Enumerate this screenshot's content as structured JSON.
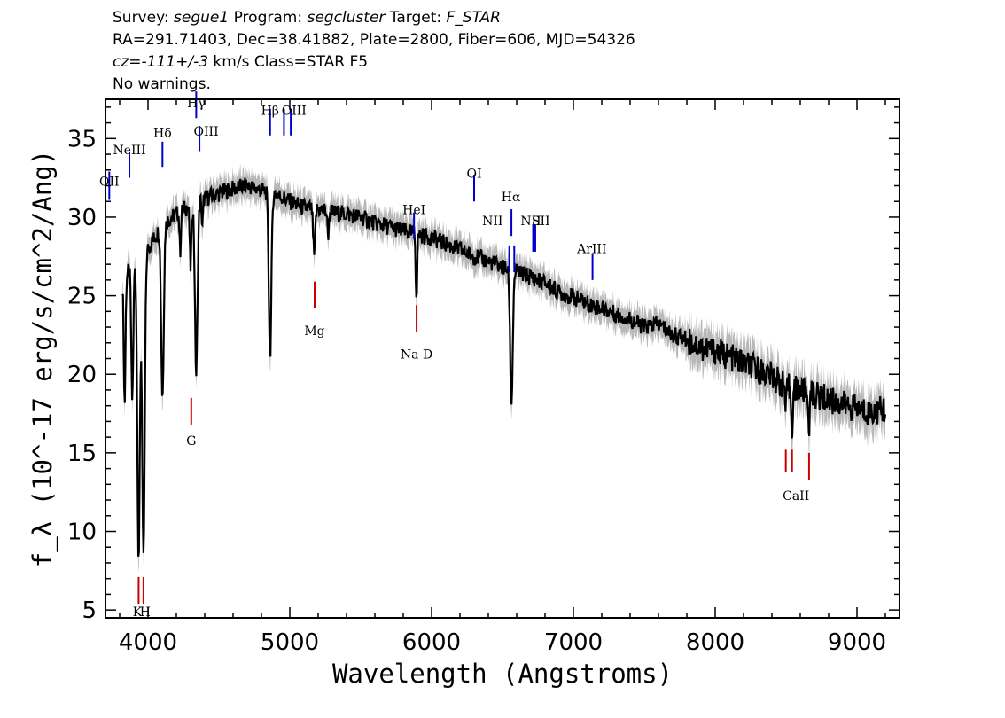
{
  "header": {
    "survey_label": "Survey:",
    "survey_value": "segue1",
    "program_label": "Program:",
    "program_value": "segcluster",
    "target_label": "Target:",
    "target_value": "F_STAR",
    "line2": "RA=291.71403, Dec=38.41882, Plate=2800, Fiber=606, MJD=54326",
    "cz_label": "cz=",
    "cz_value": "-111+/-3",
    "cz_rest": " km/s Class=STAR F5",
    "line4": "No warnings."
  },
  "colors": {
    "spectrum": "#000000",
    "error_band": "#b8b8b8",
    "emission_marker": "#0000cc",
    "absorption_marker": "#cc0000"
  },
  "chart_data": {
    "type": "line",
    "title": "",
    "xlabel": "Wavelength (Angstroms)",
    "ylabel": "f_λ (10^-17 erg/s/cm^2/Ang)",
    "xlim": [
      3700,
      9300
    ],
    "ylim": [
      4.5,
      37.5
    ],
    "xticks": [
      4000,
      5000,
      6000,
      7000,
      8000,
      9000
    ],
    "yticks": [
      5,
      10,
      15,
      20,
      25,
      30,
      35
    ],
    "grid": false,
    "continuum": [
      [
        3820,
        26.0
      ],
      [
        3900,
        27.0
      ],
      [
        4000,
        28.0
      ],
      [
        4100,
        29.5
      ],
      [
        4200,
        30.2
      ],
      [
        4300,
        30.8
      ],
      [
        4400,
        31.2
      ],
      [
        4500,
        31.5
      ],
      [
        4600,
        31.8
      ],
      [
        4700,
        32.0
      ],
      [
        4800,
        31.7
      ],
      [
        4900,
        31.5
      ],
      [
        5000,
        31.0
      ],
      [
        5100,
        30.6
      ],
      [
        5200,
        30.5
      ],
      [
        5300,
        30.3
      ],
      [
        5400,
        30.2
      ],
      [
        5500,
        30.0
      ],
      [
        5600,
        29.6
      ],
      [
        5700,
        29.4
      ],
      [
        5800,
        29.1
      ],
      [
        5900,
        28.9
      ],
      [
        6000,
        28.7
      ],
      [
        6100,
        28.3
      ],
      [
        6200,
        27.9
      ],
      [
        6300,
        27.5
      ],
      [
        6400,
        27.2
      ],
      [
        6500,
        26.8
      ],
      [
        6600,
        26.5
      ],
      [
        6700,
        26.2
      ],
      [
        6800,
        25.8
      ],
      [
        6900,
        25.2
      ],
      [
        7000,
        24.9
      ],
      [
        7100,
        24.5
      ],
      [
        7200,
        24.2
      ],
      [
        7300,
        23.8
      ],
      [
        7400,
        23.5
      ],
      [
        7500,
        23.0
      ],
      [
        7600,
        23.2
      ],
      [
        7700,
        22.5
      ],
      [
        7800,
        22.2
      ],
      [
        7900,
        21.7
      ],
      [
        8000,
        21.5
      ],
      [
        8100,
        21.1
      ],
      [
        8200,
        20.7
      ],
      [
        8300,
        20.3
      ],
      [
        8400,
        19.9
      ],
      [
        8500,
        19.2
      ],
      [
        8600,
        19.0
      ],
      [
        8700,
        18.7
      ],
      [
        8800,
        18.4
      ],
      [
        8900,
        18.1
      ],
      [
        9000,
        17.8
      ],
      [
        9100,
        17.6
      ],
      [
        9200,
        17.8
      ]
    ],
    "absorption_features": [
      {
        "wave": 3835,
        "depth": 8.0,
        "width": 6
      },
      {
        "wave": 3889,
        "depth": 8.5,
        "width": 7
      },
      {
        "wave": 3934,
        "depth": 19.0,
        "width": 9
      },
      {
        "wave": 3968,
        "depth": 19.5,
        "width": 9
      },
      {
        "wave": 4102,
        "depth": 11.0,
        "width": 9
      },
      {
        "wave": 4227,
        "depth": 2.5,
        "width": 5
      },
      {
        "wave": 4300,
        "depth": 4.0,
        "width": 6
      },
      {
        "wave": 4340,
        "depth": 11.0,
        "width": 9
      },
      {
        "wave": 4383,
        "depth": 2.0,
        "width": 4
      },
      {
        "wave": 4861,
        "depth": 10.5,
        "width": 9
      },
      {
        "wave": 5172,
        "depth": 3.0,
        "width": 7
      },
      {
        "wave": 5270,
        "depth": 1.5,
        "width": 5
      },
      {
        "wave": 5890,
        "depth": 2.5,
        "width": 4
      },
      {
        "wave": 5896,
        "depth": 2.5,
        "width": 4
      },
      {
        "wave": 6563,
        "depth": 8.5,
        "width": 9
      },
      {
        "wave": 8498,
        "depth": 1.5,
        "width": 5
      },
      {
        "wave": 8542,
        "depth": 2.5,
        "width": 6
      },
      {
        "wave": 8662,
        "depth": 2.0,
        "width": 6
      }
    ],
    "emission_lines": [
      {
        "label": "OII",
        "wave": 3727,
        "y": 31.1,
        "len": 1.8
      },
      {
        "label": "NeIII",
        "wave": 3869,
        "y": 32.5,
        "len": 1.6
      },
      {
        "label": "Hδ",
        "wave": 4102,
        "y": 33.2,
        "len": 1.6
      },
      {
        "label": "Hγ",
        "wave": 4340,
        "y": 36.3,
        "len": 1.7
      },
      {
        "label": "OIII",
        "wave": 4363,
        "y": 34.2,
        "len": 1.6
      },
      {
        "label": "Hβ",
        "wave": 4861,
        "y": 35.2,
        "len": 1.7
      },
      {
        "label": "OIII",
        "wave": 4959,
        "y": 35.2,
        "len": 1.7
      },
      {
        "label": "OIII",
        "wave": 5007,
        "y": 35.2,
        "len": 1.7
      },
      {
        "label": "HeI",
        "wave": 5876,
        "y": 28.6,
        "len": 1.7
      },
      {
        "label": "OI",
        "wave": 6300,
        "y": 31.0,
        "len": 1.7
      },
      {
        "label": "NII",
        "wave": 6548,
        "y": 26.5,
        "len": 1.7
      },
      {
        "label": "Hα",
        "wave": 6563,
        "y": 28.8,
        "len": 1.7
      },
      {
        "label": "NII",
        "wave": 6583,
        "y": 26.5,
        "len": 1.7
      },
      {
        "label": "SII",
        "wave": 6716,
        "y": 27.8,
        "len": 1.7
      },
      {
        "label": "SII",
        "wave": 6731,
        "y": 27.8,
        "len": 1.7
      },
      {
        "label": "ArIII",
        "wave": 7135,
        "y": 26.0,
        "len": 1.7
      }
    ],
    "absorption_lines": [
      {
        "label": "K",
        "wave": 3934,
        "y": 5.4,
        "len": 1.7
      },
      {
        "label": "H",
        "wave": 3968,
        "y": 5.4,
        "len": 1.7
      },
      {
        "label": "G",
        "wave": 4305,
        "y": 16.8,
        "len": 1.7
      },
      {
        "label": "Mg",
        "wave": 5175,
        "y": 24.2,
        "len": 1.7
      },
      {
        "label": "Na D",
        "wave": 5894,
        "y": 22.7,
        "len": 1.7
      },
      {
        "label": "CaII",
        "wave": 8498,
        "y": 13.8,
        "len": 1.4
      },
      {
        "label": "CaII",
        "wave": 8542,
        "y": 13.8,
        "len": 1.4
      },
      {
        "label": "CaII",
        "wave": 8662,
        "y": 13.3,
        "len": 1.7
      }
    ],
    "line_label_text": [
      {
        "text": "OII",
        "wave": 3727,
        "y": 32.0
      },
      {
        "text": "NeIII",
        "wave": 3869,
        "y": 34.0
      },
      {
        "text": "Hδ",
        "wave": 4102,
        "y": 35.1
      },
      {
        "text": "Hγ",
        "wave": 4340,
        "y": 37.0
      },
      {
        "text": "OIII",
        "wave": 4410,
        "y": 35.2
      },
      {
        "text": "Hβ",
        "wave": 4861,
        "y": 36.5
      },
      {
        "text": "OIII",
        "wave": 5030,
        "y": 36.5
      },
      {
        "text": "HeI",
        "wave": 5876,
        "y": 30.2
      },
      {
        "text": "OI",
        "wave": 6300,
        "y": 32.5
      },
      {
        "text": "NII",
        "wave": 6430,
        "y": 29.5
      },
      {
        "text": "Hα",
        "wave": 6560,
        "y": 31.0
      },
      {
        "text": "NII",
        "wave": 6700,
        "y": 29.5
      },
      {
        "text": "SII",
        "wave": 6770,
        "y": 29.5
      },
      {
        "text": "ArIII",
        "wave": 7130,
        "y": 27.7
      },
      {
        "text": "Mg",
        "wave": 5175,
        "y": 22.5
      },
      {
        "text": "Na D",
        "wave": 5894,
        "y": 21.0
      },
      {
        "text": "G",
        "wave": 4305,
        "y": 15.5
      },
      {
        "text": "CaII",
        "wave": 8570,
        "y": 12.0
      },
      {
        "text": "K",
        "wave": 3925,
        "y": 4.6
      },
      {
        "text": "H",
        "wave": 3980,
        "y": 4.6
      }
    ]
  }
}
